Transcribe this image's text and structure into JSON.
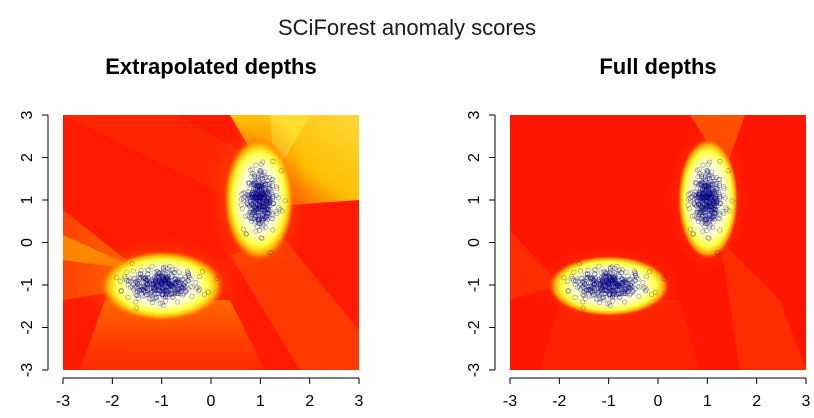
{
  "figure": {
    "title": "SCiForest anomaly scores"
  },
  "chart_data": [
    {
      "type": "heatmap",
      "title": "Extrapolated depths",
      "xlim": [
        -3,
        3
      ],
      "ylim": [
        -3,
        3
      ],
      "xticks": [
        "-3",
        "-2",
        "-1",
        "0",
        "1",
        "2",
        "3"
      ],
      "yticks": [
        "-3",
        "-2",
        "-1",
        "0",
        "1",
        "2",
        "3"
      ],
      "colormap": [
        "#ff0000",
        "#ff7a00",
        "#ffff40",
        "#ffffff"
      ],
      "point_color": "#000080",
      "clusters": [
        {
          "center": [
            -1,
            -1
          ],
          "spread": [
            0.45,
            0.22
          ]
        },
        {
          "center": [
            1,
            1
          ],
          "spread": [
            0.2,
            0.45
          ]
        }
      ],
      "grid": false,
      "legend": "none"
    },
    {
      "type": "heatmap",
      "title": "Full depths",
      "xlim": [
        -3,
        3
      ],
      "ylim": [
        -3,
        3
      ],
      "xticks": [
        "-3",
        "-2",
        "-1",
        "0",
        "1",
        "2",
        "3"
      ],
      "yticks": [
        "-3",
        "-2",
        "-1",
        "0",
        "1",
        "2",
        "3"
      ],
      "colormap": [
        "#ff0000",
        "#ff7a00",
        "#ffff40",
        "#ffffff"
      ],
      "point_color": "#000080",
      "clusters": [
        {
          "center": [
            -1,
            -1
          ],
          "spread": [
            0.45,
            0.22
          ]
        },
        {
          "center": [
            1,
            1
          ],
          "spread": [
            0.2,
            0.45
          ]
        }
      ],
      "grid": false,
      "legend": "none"
    }
  ]
}
